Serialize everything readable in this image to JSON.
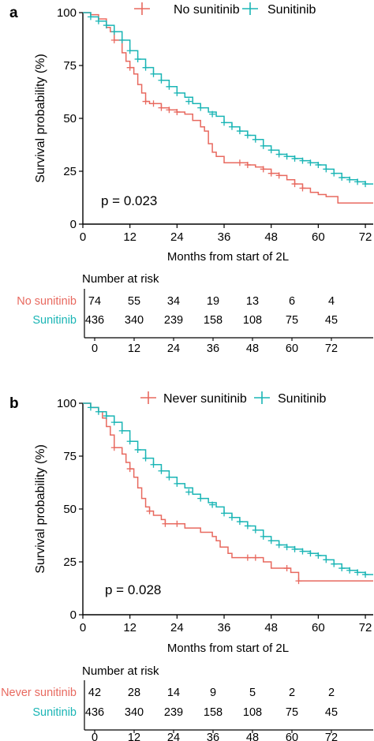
{
  "colors": {
    "group_a": "#e8695f",
    "group_b": "#1ab5b5",
    "axis": "#000000"
  },
  "panels": [
    {
      "panel_label": "a",
      "legend_labels": [
        "No sunitinib",
        "Sunitinib"
      ],
      "p_value": "p = 0.023",
      "risk_title": "Number at risk",
      "risk_rows": [
        {
          "label": "No sunitinib",
          "values": [
            "74",
            "55",
            "34",
            "19",
            "13",
            "6",
            "4"
          ]
        },
        {
          "label": "Sunitinib",
          "values": [
            "436",
            "340",
            "239",
            "158",
            "108",
            "75",
            "45"
          ]
        }
      ]
    },
    {
      "panel_label": "b",
      "legend_labels": [
        "Never sunitinib",
        "Sunitinib"
      ],
      "p_value": "p = 0.028",
      "risk_title": "Number at risk",
      "risk_rows": [
        {
          "label": "Never sunitinib",
          "values": [
            "42",
            "28",
            "14",
            "9",
            "5",
            "2",
            "2"
          ]
        },
        {
          "label": "Sunitinib",
          "values": [
            "436",
            "340",
            "239",
            "158",
            "108",
            "75",
            "45"
          ]
        }
      ]
    }
  ],
  "chart_data": [
    {
      "type": "line",
      "subtype": "kaplan-meier",
      "xlabel": "Months from start of 2L",
      "ylabel": "Survival probability (%)",
      "xlim": [
        0,
        74
      ],
      "ylim": [
        0,
        100
      ],
      "xticks": [
        0,
        12,
        24,
        36,
        48,
        60,
        72
      ],
      "yticks": [
        0,
        25,
        50,
        75,
        100
      ],
      "legend": "top",
      "series": [
        {
          "name": "No sunitinib",
          "points": [
            [
              0,
              100
            ],
            [
              2,
              99
            ],
            [
              4,
              97
            ],
            [
              6,
              93
            ],
            [
              7,
              91
            ],
            [
              8,
              87
            ],
            [
              10,
              81
            ],
            [
              11,
              77
            ],
            [
              12,
              74
            ],
            [
              13,
              71
            ],
            [
              14,
              66
            ],
            [
              15,
              62
            ],
            [
              16,
              58
            ],
            [
              17,
              57
            ],
            [
              18,
              57
            ],
            [
              20,
              55
            ],
            [
              22,
              54
            ],
            [
              24,
              53
            ],
            [
              26,
              52
            ],
            [
              28,
              49
            ],
            [
              30,
              46
            ],
            [
              31,
              44
            ],
            [
              32,
              38
            ],
            [
              33,
              34
            ],
            [
              34,
              32
            ],
            [
              36,
              29
            ],
            [
              40,
              29
            ],
            [
              42,
              28
            ],
            [
              44,
              27
            ],
            [
              46,
              26
            ],
            [
              48,
              24
            ],
            [
              50,
              23
            ],
            [
              52,
              21
            ],
            [
              54,
              19
            ],
            [
              56,
              17
            ],
            [
              58,
              15
            ],
            [
              60,
              14
            ],
            [
              62,
              13
            ],
            [
              65,
              10
            ],
            [
              74,
              10
            ]
          ],
          "censors": [
            [
              8,
              87
            ],
            [
              12,
              74
            ],
            [
              16,
              58
            ],
            [
              18,
              57
            ],
            [
              20,
              55
            ],
            [
              22,
              54
            ],
            [
              24,
              53
            ],
            [
              40,
              29
            ],
            [
              42,
              28
            ],
            [
              46,
              26
            ],
            [
              48,
              24
            ],
            [
              50,
              23
            ],
            [
              54,
              19
            ],
            [
              56,
              17
            ]
          ]
        },
        {
          "name": "Sunitinib",
          "points": [
            [
              0,
              100
            ],
            [
              2,
              98
            ],
            [
              4,
              96
            ],
            [
              6,
              94
            ],
            [
              8,
              91
            ],
            [
              10,
              87
            ],
            [
              12,
              82
            ],
            [
              14,
              78
            ],
            [
              16,
              74
            ],
            [
              18,
              71
            ],
            [
              20,
              68
            ],
            [
              22,
              65
            ],
            [
              24,
              62
            ],
            [
              26,
              60
            ],
            [
              28,
              57
            ],
            [
              30,
              55
            ],
            [
              32,
              53
            ],
            [
              34,
              51
            ],
            [
              36,
              48
            ],
            [
              38,
              46
            ],
            [
              40,
              44
            ],
            [
              42,
              42
            ],
            [
              44,
              40
            ],
            [
              46,
              37
            ],
            [
              48,
              35
            ],
            [
              50,
              33
            ],
            [
              52,
              32
            ],
            [
              54,
              31
            ],
            [
              56,
              30
            ],
            [
              58,
              29
            ],
            [
              60,
              28
            ],
            [
              62,
              26
            ],
            [
              64,
              24
            ],
            [
              66,
              22
            ],
            [
              68,
              21
            ],
            [
              70,
              20
            ],
            [
              72,
              19
            ],
            [
              74,
              19
            ]
          ],
          "censors": [
            [
              2,
              98
            ],
            [
              4,
              96
            ],
            [
              6,
              94
            ],
            [
              8,
              91
            ],
            [
              10,
              87
            ],
            [
              12,
              82
            ],
            [
              14,
              78
            ],
            [
              16,
              74
            ],
            [
              18,
              71
            ],
            [
              20,
              68
            ],
            [
              22,
              65
            ],
            [
              24,
              62
            ],
            [
              27,
              58
            ],
            [
              30,
              55
            ],
            [
              33,
              52
            ],
            [
              36,
              48
            ],
            [
              38,
              46
            ],
            [
              40,
              44
            ],
            [
              42,
              42
            ],
            [
              44,
              40
            ],
            [
              46,
              37
            ],
            [
              48,
              35
            ],
            [
              50,
              33
            ],
            [
              52,
              32
            ],
            [
              54,
              31
            ],
            [
              56,
              30
            ],
            [
              58,
              29
            ],
            [
              60,
              28
            ],
            [
              62,
              26
            ],
            [
              64,
              24
            ],
            [
              66,
              22
            ],
            [
              68,
              21
            ],
            [
              70,
              20
            ],
            [
              72,
              19
            ]
          ]
        }
      ]
    },
    {
      "type": "line",
      "subtype": "kaplan-meier",
      "xlabel": "Months from start of 2L",
      "ylabel": "Survival probability (%)",
      "xlim": [
        0,
        74
      ],
      "ylim": [
        0,
        100
      ],
      "xticks": [
        0,
        12,
        24,
        36,
        48,
        60,
        72
      ],
      "yticks": [
        0,
        25,
        50,
        75,
        100
      ],
      "legend": "top",
      "series": [
        {
          "name": "Never sunitinib",
          "points": [
            [
              0,
              100
            ],
            [
              2,
              98
            ],
            [
              4,
              96
            ],
            [
              5,
              93
            ],
            [
              6,
              89
            ],
            [
              7,
              85
            ],
            [
              8,
              79
            ],
            [
              10,
              76
            ],
            [
              11,
              72
            ],
            [
              12,
              69
            ],
            [
              13,
              65
            ],
            [
              14,
              60
            ],
            [
              15,
              55
            ],
            [
              16,
              51
            ],
            [
              17,
              49
            ],
            [
              18,
              47
            ],
            [
              20,
              45
            ],
            [
              21,
              43
            ],
            [
              24,
              43
            ],
            [
              26,
              41
            ],
            [
              28,
              41
            ],
            [
              30,
              39
            ],
            [
              33,
              37
            ],
            [
              34,
              35
            ],
            [
              35,
              32
            ],
            [
              37,
              29
            ],
            [
              38,
              27
            ],
            [
              44,
              27
            ],
            [
              46,
              25
            ],
            [
              48,
              22
            ],
            [
              52,
              22
            ],
            [
              53,
              20
            ],
            [
              54,
              20
            ],
            [
              55,
              16
            ],
            [
              60,
              16
            ],
            [
              74,
              16
            ]
          ],
          "censors": [
            [
              8,
              79
            ],
            [
              12,
              69
            ],
            [
              17,
              49
            ],
            [
              21,
              43
            ],
            [
              24,
              43
            ],
            [
              42,
              27
            ],
            [
              44,
              27
            ],
            [
              52,
              22
            ],
            [
              55,
              16
            ]
          ]
        },
        {
          "name": "Sunitinib",
          "points": [
            [
              0,
              100
            ],
            [
              2,
              98
            ],
            [
              4,
              96
            ],
            [
              6,
              94
            ],
            [
              8,
              91
            ],
            [
              10,
              87
            ],
            [
              12,
              82
            ],
            [
              14,
              78
            ],
            [
              16,
              74
            ],
            [
              18,
              71
            ],
            [
              20,
              68
            ],
            [
              22,
              65
            ],
            [
              24,
              62
            ],
            [
              26,
              60
            ],
            [
              28,
              57
            ],
            [
              30,
              55
            ],
            [
              32,
              53
            ],
            [
              34,
              51
            ],
            [
              36,
              48
            ],
            [
              38,
              46
            ],
            [
              40,
              44
            ],
            [
              42,
              42
            ],
            [
              44,
              40
            ],
            [
              46,
              37
            ],
            [
              48,
              35
            ],
            [
              50,
              33
            ],
            [
              52,
              32
            ],
            [
              54,
              31
            ],
            [
              56,
              30
            ],
            [
              58,
              29
            ],
            [
              60,
              28
            ],
            [
              62,
              26
            ],
            [
              64,
              24
            ],
            [
              66,
              22
            ],
            [
              68,
              21
            ],
            [
              70,
              20
            ],
            [
              72,
              19
            ],
            [
              74,
              19
            ]
          ],
          "censors": [
            [
              2,
              98
            ],
            [
              4,
              96
            ],
            [
              6,
              94
            ],
            [
              8,
              91
            ],
            [
              10,
              87
            ],
            [
              12,
              82
            ],
            [
              14,
              78
            ],
            [
              16,
              74
            ],
            [
              18,
              71
            ],
            [
              20,
              68
            ],
            [
              22,
              65
            ],
            [
              24,
              62
            ],
            [
              27,
              58
            ],
            [
              30,
              55
            ],
            [
              33,
              52
            ],
            [
              36,
              48
            ],
            [
              38,
              46
            ],
            [
              40,
              44
            ],
            [
              42,
              42
            ],
            [
              44,
              40
            ],
            [
              46,
              37
            ],
            [
              48,
              35
            ],
            [
              50,
              33
            ],
            [
              52,
              32
            ],
            [
              54,
              31
            ],
            [
              56,
              30
            ],
            [
              58,
              29
            ],
            [
              60,
              28
            ],
            [
              62,
              26
            ],
            [
              64,
              24
            ],
            [
              66,
              22
            ],
            [
              68,
              21
            ],
            [
              70,
              20
            ],
            [
              72,
              19
            ]
          ]
        }
      ]
    }
  ]
}
